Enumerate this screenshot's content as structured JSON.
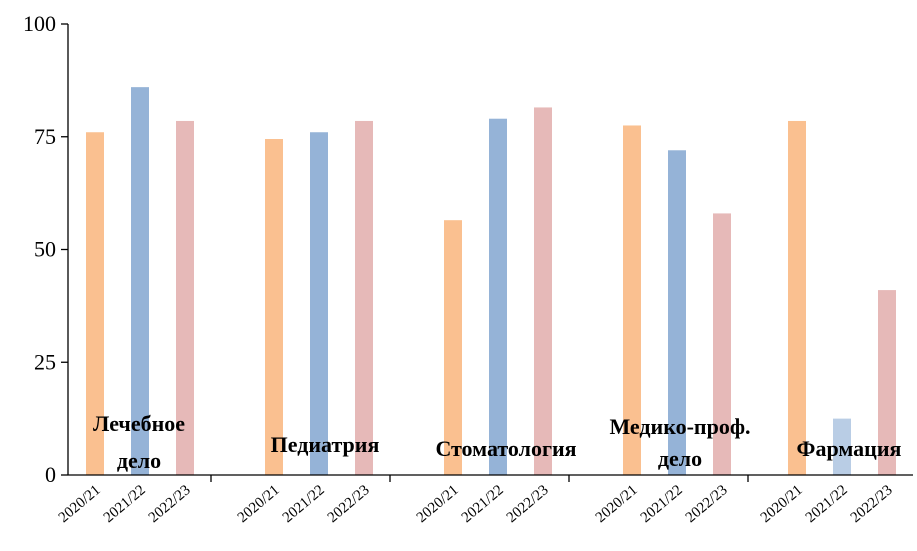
{
  "chart_data": {
    "type": "bar",
    "ylim": [
      0,
      100
    ],
    "yticks": [
      0,
      25,
      50,
      75,
      100
    ],
    "grid": false,
    "legend": "none",
    "colors": [
      "#FAC090",
      "#95B3D7",
      "#E6B9B8"
    ],
    "colors_faded": [
      "#FAC090",
      "#B9CDE5",
      "#E6B9B8"
    ],
    "groups": [
      {
        "name_lines": [
          "Лечебное",
          "дело"
        ],
        "labels": [
          "2020/21",
          "2021/22",
          "2022/23"
        ],
        "values": [
          76,
          86,
          78.5
        ]
      },
      {
        "name_lines": [
          "Педиатрия"
        ],
        "labels": [
          "2020/21",
          "2021/22",
          "2022/23"
        ],
        "values": [
          74.5,
          76,
          78.5
        ]
      },
      {
        "name_lines": [
          "Стоматология"
        ],
        "labels": [
          "2020/21",
          "2021/22",
          "2022/23"
        ],
        "values": [
          56.5,
          79,
          81.5
        ]
      },
      {
        "name_lines": [
          "Медико-проф.",
          "дело"
        ],
        "labels": [
          "2020/21",
          "2021/22",
          "2022/23"
        ],
        "values": [
          77.5,
          72,
          58
        ]
      },
      {
        "name_lines": [
          "Фармация"
        ],
        "labels": [
          "2020/21",
          "2021/22",
          "2022/23"
        ],
        "values": [
          78.5,
          12.5,
          41
        ]
      }
    ]
  }
}
